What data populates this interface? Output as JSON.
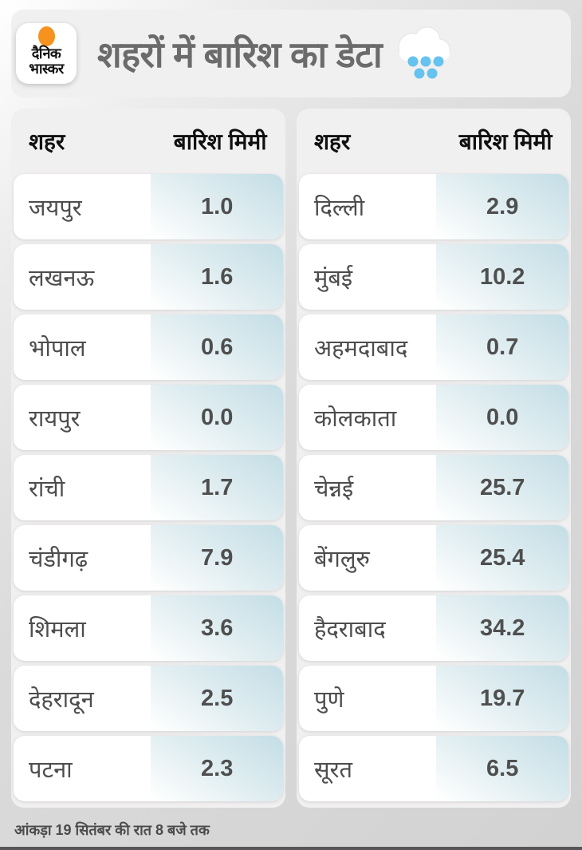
{
  "colors": {
    "accent_orange": "#f6921e",
    "rain_drop_blue": "#66c2ee",
    "value_cell_teal": "#c6dfe7",
    "title_gray": "#6b6b6b",
    "panel_gray": "#f1f0f0"
  },
  "brand": {
    "name_line1": "दैनिक",
    "name_line2": "भास्कर"
  },
  "header": {
    "title": "शहरों में बारिश का डेटा"
  },
  "table": {
    "headers": {
      "city": "शहर",
      "rain": "बारिश मिमी"
    },
    "columns": [
      {
        "rows": [
          {
            "city": "जयपुर",
            "value": "1.0"
          },
          {
            "city": "लखनऊ",
            "value": "1.6"
          },
          {
            "city": "भोपाल",
            "value": "0.6"
          },
          {
            "city": "रायपुर",
            "value": "0.0"
          },
          {
            "city": "रांची",
            "value": "1.7"
          },
          {
            "city": "चंडीगढ़",
            "value": "7.9"
          },
          {
            "city": "शिमला",
            "value": "3.6"
          },
          {
            "city": "देहरादून",
            "value": "2.5"
          },
          {
            "city": "पटना",
            "value": "2.3"
          }
        ]
      },
      {
        "rows": [
          {
            "city": "दिल्ली",
            "value": "2.9"
          },
          {
            "city": "मुंबई",
            "value": "10.2"
          },
          {
            "city": "अहमदाबाद",
            "value": "0.7"
          },
          {
            "city": "कोलकाता",
            "value": "0.0"
          },
          {
            "city": "चेन्नई",
            "value": "25.7"
          },
          {
            "city": "बेंगलुरु",
            "value": "25.4"
          },
          {
            "city": "हैदराबाद",
            "value": "34.2"
          },
          {
            "city": "पुणे",
            "value": "19.7"
          },
          {
            "city": "सूरत",
            "value": "6.5"
          }
        ]
      }
    ]
  },
  "footer": {
    "note": "आंकड़ा 19 सितंबर की रात 8 बजे तक"
  },
  "chart_data": {
    "type": "table",
    "title": "शहरों में बारिश का डेटा",
    "columns": [
      "शहर",
      "बारिश मिमी"
    ],
    "rows": [
      [
        "जयपुर",
        1.0
      ],
      [
        "लखनऊ",
        1.6
      ],
      [
        "भोपाल",
        0.6
      ],
      [
        "रायपुर",
        0.0
      ],
      [
        "रांची",
        1.7
      ],
      [
        "चंडीगढ़",
        7.9
      ],
      [
        "शिमला",
        3.6
      ],
      [
        "देहरादून",
        2.5
      ],
      [
        "पटना",
        2.3
      ],
      [
        "दिल्ली",
        2.9
      ],
      [
        "मुंबई",
        10.2
      ],
      [
        "अहमदाबाद",
        0.7
      ],
      [
        "कोलकाता",
        0.0
      ],
      [
        "चेन्नई",
        25.7
      ],
      [
        "बेंगलुरु",
        25.4
      ],
      [
        "हैदराबाद",
        34.2
      ],
      [
        "पुणे",
        19.7
      ],
      [
        "सूरत",
        6.5
      ]
    ],
    "units": "mm",
    "note": "आंकड़ा 19 सितंबर की रात 8 बजे तक",
    "layout": "two-column-table"
  }
}
